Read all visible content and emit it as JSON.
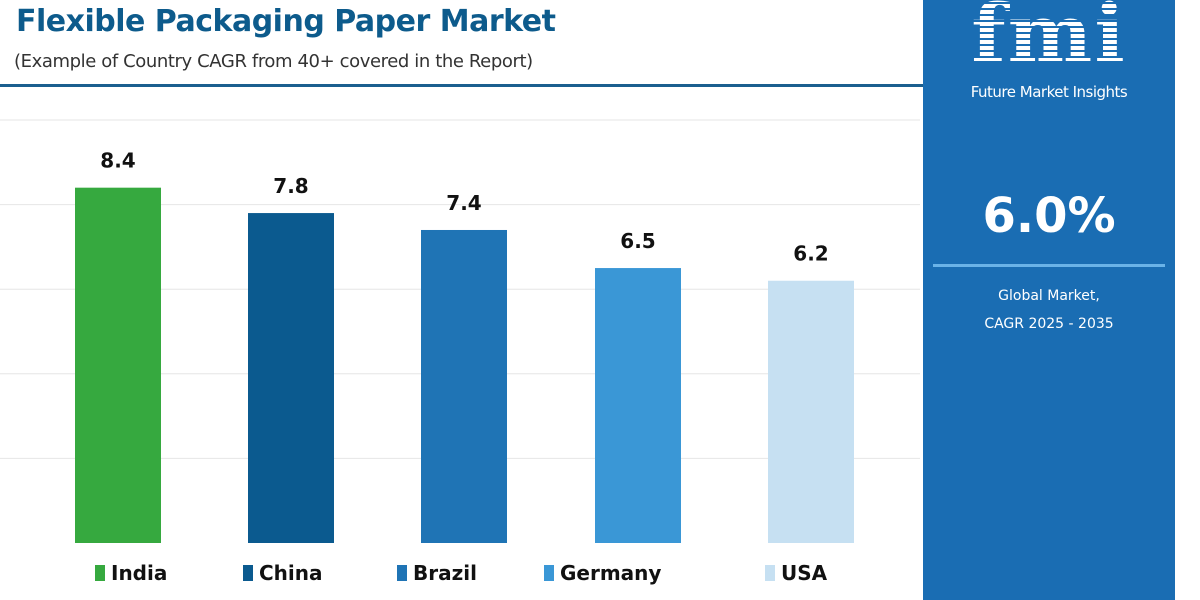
{
  "chart_data": {
    "type": "bar",
    "title": "Flexible Packaging Paper Market",
    "subtitle": "(Example of Country CAGR from 40+ covered in the Report)",
    "categories": [
      "India",
      "China",
      "Brazil",
      "Germany",
      "USA"
    ],
    "values": [
      8.4,
      7.8,
      7.4,
      6.5,
      6.2
    ],
    "data_labels": [
      "8.4",
      "7.8",
      "7.4",
      "6.5",
      "6.2"
    ],
    "colors": [
      "#36a93f",
      "#0b5a8f",
      "#1f74b5",
      "#3a97d6",
      "#c6e0f2"
    ],
    "ylim": [
      0,
      10
    ],
    "grid": true,
    "legend": "bottom",
    "xlabel": "",
    "ylabel": ""
  },
  "side_panel": {
    "logo_text": "fmi",
    "brand": "Future Market Insights",
    "value": "6.0%",
    "label_line1": "Global Market,",
    "label_line2": "CAGR 2025 - 2035",
    "color": "#1a6db3"
  }
}
